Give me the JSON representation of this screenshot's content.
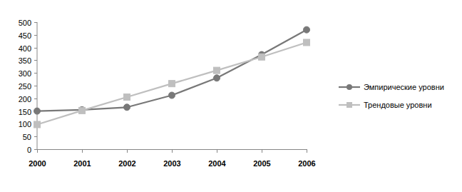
{
  "chart_data": {
    "type": "line",
    "categories": [
      "2000",
      "2001",
      "2002",
      "2003",
      "2004",
      "2005",
      "2006"
    ],
    "series": [
      {
        "name": "Эмпирические уровни",
        "color": "#787878",
        "marker": "circle",
        "line_style": "solid",
        "values": [
          150,
          155,
          165,
          212,
          280,
          372,
          470
        ]
      },
      {
        "name": "Трендовые уровни",
        "color": "#bfbfbf",
        "marker": "square",
        "line_style": "solid",
        "values": [
          97,
          152,
          205,
          258,
          310,
          363,
          420
        ]
      }
    ],
    "ylim": [
      0,
      500
    ],
    "yticks": [
      0,
      50,
      100,
      150,
      200,
      250,
      300,
      350,
      400,
      450,
      500
    ],
    "grid": false,
    "legend": "right"
  }
}
